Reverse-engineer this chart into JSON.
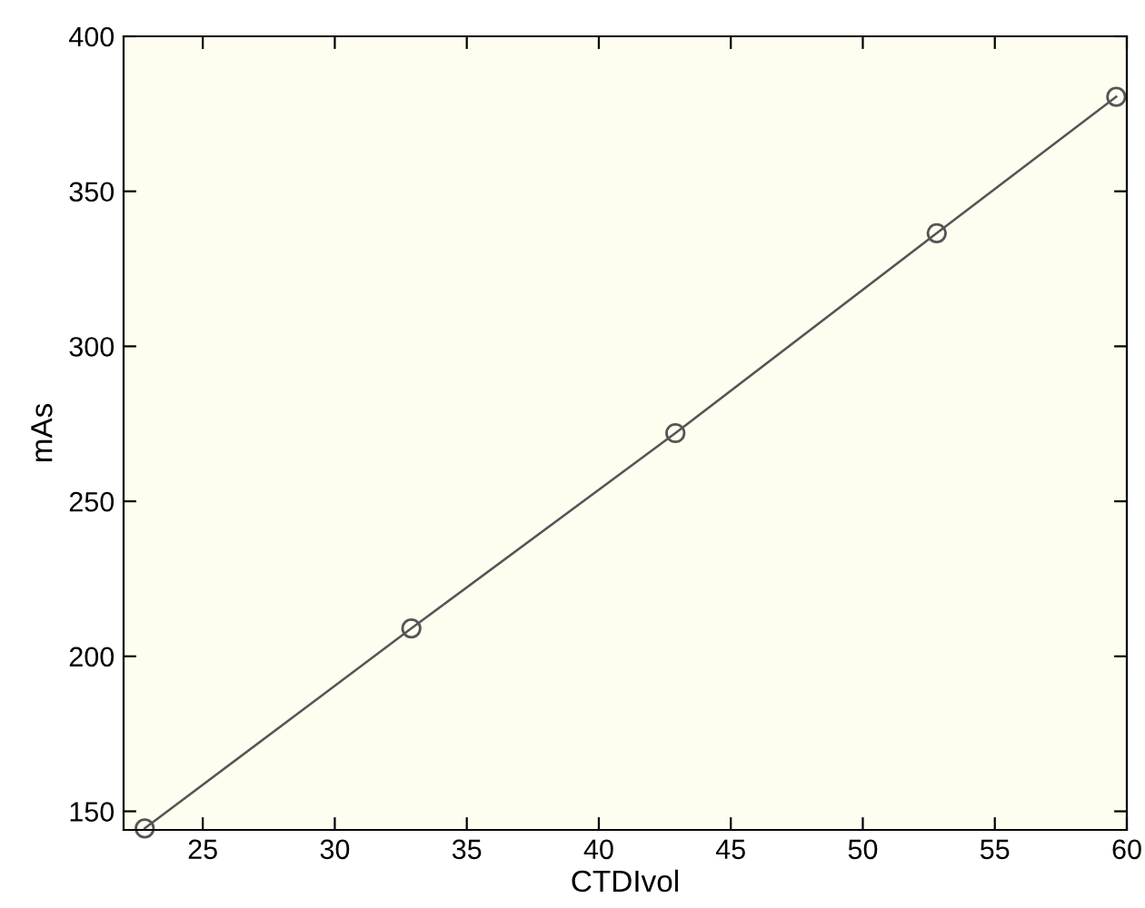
{
  "chart_data": {
    "type": "line",
    "xlabel": "CTDIvol",
    "ylabel": "mAs",
    "x": [
      22.8,
      32.9,
      42.9,
      52.8,
      59.6
    ],
    "series": [
      {
        "color": "#555555",
        "values": [
          144.5,
          209,
          272,
          336.5,
          380.5
        ]
      }
    ],
    "xlim": [
      22,
      60
    ],
    "ylim": [
      144,
      400
    ],
    "xticks": [
      25,
      30,
      35,
      40,
      45,
      50,
      55,
      60
    ],
    "yticks": [
      150,
      200,
      250,
      300,
      350,
      400
    ],
    "grid": false,
    "legend": false,
    "marker": "circle",
    "line_style": "solid"
  }
}
